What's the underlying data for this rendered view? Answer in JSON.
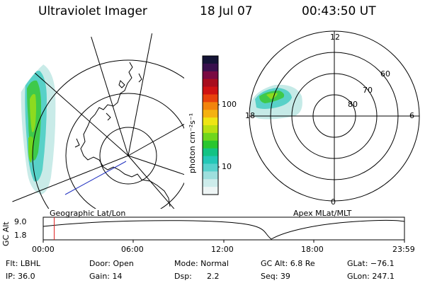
{
  "header": {
    "title": "Ultraviolet Imager",
    "date": "18 Jul 07",
    "time": "00:43:50 UT"
  },
  "colorbar": {
    "unit_label": "photon cm⁻²s⁻¹",
    "ticks": [
      "100",
      "10"
    ],
    "colors": [
      "#141436",
      "#39104d",
      "#7a0a42",
      "#a80d1d",
      "#cf1212",
      "#e8420c",
      "#f2840c",
      "#f4b110",
      "#eee514",
      "#b9e012",
      "#6fd61c",
      "#29c62f",
      "#12c384",
      "#23c7b7",
      "#58d1cc",
      "#9edfdd",
      "#cdeceb",
      "#eef5f5"
    ]
  },
  "left_panel": {
    "caption": "Geographic Lat/Lon"
  },
  "right_panel": {
    "caption": "Apex MLat/MLT",
    "mlt_labels": [
      "12",
      "6",
      "18",
      "0"
    ],
    "lat_labels": [
      "60",
      "70",
      "80"
    ]
  },
  "altitude_plot": {
    "ylabel": "GC Alt",
    "y_ticks": [
      "9.0",
      "1.8"
    ],
    "x_ticks": [
      "00:00",
      "06:00",
      "12:00",
      "18:00",
      "23:59"
    ],
    "marker_time_hours": 0.73,
    "marker_color": "#e02020"
  },
  "info": {
    "flt": "Flt: LBHL",
    "ip": "IP: 36.0",
    "door": "Door: Open",
    "gain": "Gain: 14",
    "mode": "Mode: Normal",
    "dsp_label": "Dsp:",
    "dsp_value": "2.2",
    "gc_alt": "GC Alt: 6.8 Re",
    "seq": "Seq: 39",
    "glat": "GLat: −76.1",
    "glon": "GLon: 247.1"
  }
}
